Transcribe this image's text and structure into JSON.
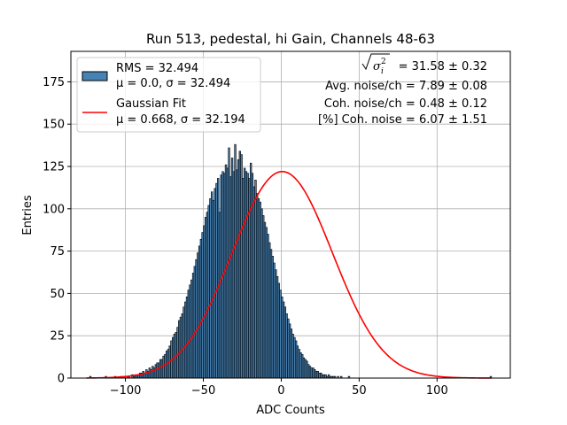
{
  "chart_data": {
    "type": "bar",
    "subtype": "histogram",
    "title": "Run 513, pedestal, hi Gain, Channels 48-63",
    "xlabel": "ADC Counts",
    "ylabel": "Entries",
    "xlim": [
      -135,
      147
    ],
    "ylim": [
      0,
      193
    ],
    "xticks": [
      -100,
      -50,
      0,
      50,
      100
    ],
    "xtick_labels": [
      "−100",
      "−50",
      "0",
      "50",
      "100"
    ],
    "yticks": [
      0,
      25,
      50,
      75,
      100,
      125,
      150,
      175
    ],
    "ytick_labels": [
      "0",
      "25",
      "50",
      "75",
      "100",
      "125",
      "150",
      "175"
    ],
    "grid": true,
    "histogram": {
      "name": "RMS = 32.494",
      "bin_start": -123,
      "bin_width": 1,
      "values": [
        1,
        0,
        0,
        0,
        0,
        0,
        0,
        0,
        0,
        0,
        1,
        0,
        0,
        0,
        0,
        0,
        1,
        0,
        0,
        0,
        1,
        0,
        1,
        0,
        1,
        1,
        0,
        2,
        1,
        2,
        2,
        2,
        3,
        3,
        4,
        3,
        5,
        4,
        6,
        5,
        7,
        6,
        8,
        9,
        9,
        11,
        11,
        13,
        14,
        16,
        17,
        19,
        22,
        24,
        26,
        27,
        30,
        34,
        36,
        38,
        42,
        45,
        48,
        52,
        55,
        58,
        62,
        66,
        70,
        74,
        78,
        82,
        86,
        90,
        95,
        98,
        102,
        106,
        110,
        105,
        112,
        115,
        118,
        98,
        120,
        122,
        121,
        126,
        124,
        136,
        119,
        130,
        122,
        138,
        123,
        129,
        134,
        132,
        118,
        124,
        122,
        121,
        118,
        127,
        121,
        113,
        117,
        109,
        106,
        104,
        100,
        96,
        92,
        89,
        85,
        80,
        76,
        72,
        68,
        64,
        60,
        56,
        52,
        48,
        45,
        42,
        38,
        35,
        32,
        29,
        26,
        24,
        22,
        19,
        17,
        15,
        14,
        12,
        11,
        10,
        8,
        7,
        6,
        6,
        5,
        4,
        4,
        3,
        3,
        2,
        2,
        2,
        1,
        2,
        1,
        1,
        1,
        1,
        0,
        1,
        0,
        1,
        0,
        0,
        0,
        0,
        1,
        0,
        0,
        0,
        0,
        0,
        0,
        0,
        0,
        0,
        0,
        0,
        0,
        0,
        0,
        0,
        0,
        0,
        0,
        0,
        0,
        0,
        0,
        0,
        0,
        0,
        0,
        0,
        0,
        0,
        0,
        0,
        0,
        0,
        0,
        0,
        0,
        0,
        0,
        0,
        0,
        0,
        0,
        0,
        0,
        0,
        0,
        0,
        0,
        0,
        0,
        0,
        0,
        0,
        0,
        0,
        0,
        0,
        0,
        0,
        0,
        0,
        0,
        0,
        0,
        0,
        0,
        0,
        0,
        0,
        0,
        0,
        0,
        0,
        0,
        0,
        0,
        0,
        0,
        0,
        0,
        0,
        0,
        0,
        0,
        0,
        0,
        0,
        0,
        0,
        0,
        1
      ],
      "color": "#4682b4",
      "edge_color": "#000000"
    },
    "fit": {
      "name": "Gaussian Fit",
      "mu": 0.668,
      "sigma": 32.194,
      "amplitude": 122,
      "range": [
        -125,
        135
      ],
      "color": "#ff0000"
    },
    "legend": {
      "location": "top-left",
      "entries": [
        {
          "line1": "RMS = 32.494",
          "line2": "μ = 0.0, σ = 32.494",
          "kind": "patch",
          "color": "#4682b4"
        },
        {
          "line1": "Gaussian Fit",
          "line2": "μ = 0.668, σ = 32.194",
          "kind": "line",
          "color": "#ff0000"
        }
      ]
    },
    "annotations": {
      "sqrt_sigma": "= 31.58 ± 0.32",
      "avg_noise": "Avg. noise/ch = 7.89 ± 0.08",
      "coh_noise": "Coh. noise/ch = 0.48 ± 0.12",
      "coh_noise_pct": "[%] Coh. noise = 6.07 ± 1.51"
    }
  }
}
